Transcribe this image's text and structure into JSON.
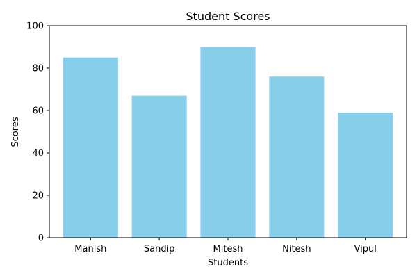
{
  "chart_data": {
    "type": "bar",
    "title": "Student Scores",
    "xlabel": "Students",
    "ylabel": "Scores",
    "categories": [
      "Manish",
      "Sandip",
      "Mitesh",
      "Nitesh",
      "Vipul"
    ],
    "values": [
      85,
      67,
      90,
      76,
      59
    ],
    "ylim": [
      0,
      100
    ],
    "yticks": [
      0,
      20,
      40,
      60,
      80,
      100
    ],
    "bar_color": "#87CEEB",
    "grid": false,
    "legend": false
  }
}
